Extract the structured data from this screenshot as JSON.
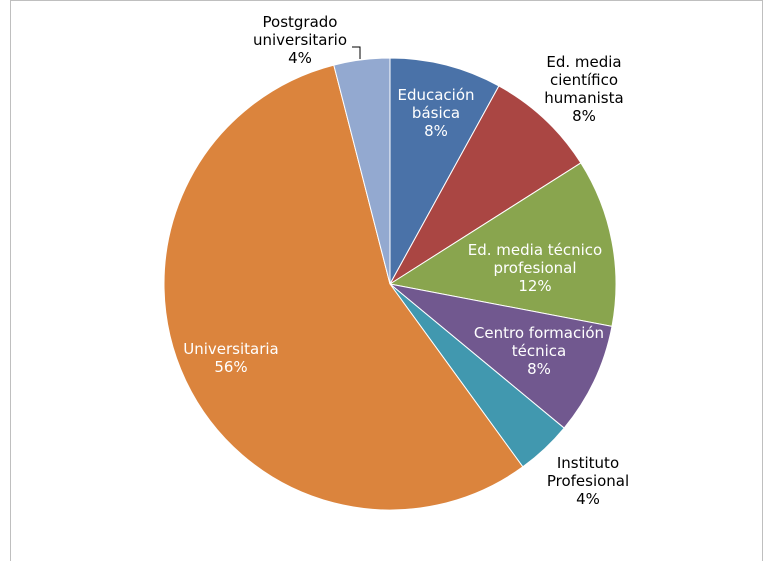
{
  "chart_data": {
    "type": "pie",
    "slices": [
      {
        "label": [
          "Educación",
          "básica"
        ],
        "value": 8,
        "value_label": "8%",
        "color": "#4a72a8",
        "label_inside": true
      },
      {
        "label": [
          "Ed. media",
          "científico",
          "humanista"
        ],
        "value": 8,
        "value_label": "8%",
        "color": "#aa4643",
        "label_inside": false
      },
      {
        "label": [
          "Ed. media técnico",
          "profesional"
        ],
        "value": 12,
        "value_label": "12%",
        "color": "#89a54e",
        "label_inside": true
      },
      {
        "label": [
          "Centro formación",
          "técnica"
        ],
        "value": 8,
        "value_label": "8%",
        "color": "#71588f",
        "label_inside": true
      },
      {
        "label": [
          "Instituto",
          "Profesional"
        ],
        "value": 4,
        "value_label": "4%",
        "color": "#4198af",
        "label_inside": false
      },
      {
        "label": [
          "Universitaria"
        ],
        "value": 56,
        "value_label": "56%",
        "color": "#db843d",
        "label_inside": true
      },
      {
        "label": [
          "Postgrado",
          "universitario"
        ],
        "value": 4,
        "value_label": "4%",
        "color": "#93a9d0",
        "label_inside": false
      }
    ]
  }
}
